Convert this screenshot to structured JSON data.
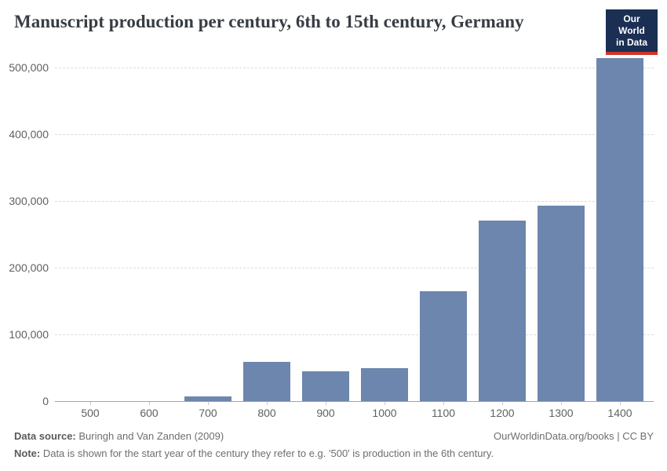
{
  "header": {
    "title": "Manuscript production per century, 6th to 15th century, Germany",
    "logo": {
      "line1": "Our World",
      "line2": "in Data",
      "bg_color": "#1b2e54",
      "accent_color": "#d1352b",
      "text_color": "#ffffff"
    }
  },
  "chart_data": {
    "type": "bar",
    "title": "Manuscript production per century, 6th to 15th century, Germany",
    "categories": [
      "500",
      "600",
      "700",
      "800",
      "900",
      "1000",
      "1100",
      "1200",
      "1300",
      "1400"
    ],
    "values": [
      0,
      0,
      7000,
      59000,
      45000,
      49000,
      165000,
      270000,
      293000,
      514000
    ],
    "xlabel": "",
    "ylabel": "",
    "ylim": [
      0,
      500000
    ],
    "yticks": [
      0,
      100000,
      200000,
      300000,
      400000,
      500000
    ],
    "ytick_labels": [
      "0",
      "100,000",
      "200,000",
      "300,000",
      "400,000",
      "500,000"
    ],
    "grid": "horizontal-dashed",
    "legend": "none",
    "bar_color": "#6d86ad"
  },
  "footer": {
    "source_label": "Data source:",
    "source_text": " Buringh and Van Zanden (2009)",
    "note_label": "Note:",
    "note_text": " Data is shown for the start year of the century they refer to e.g. '500' is production in the 6th century.",
    "right_text": "OurWorldinData.org/books | CC BY"
  }
}
